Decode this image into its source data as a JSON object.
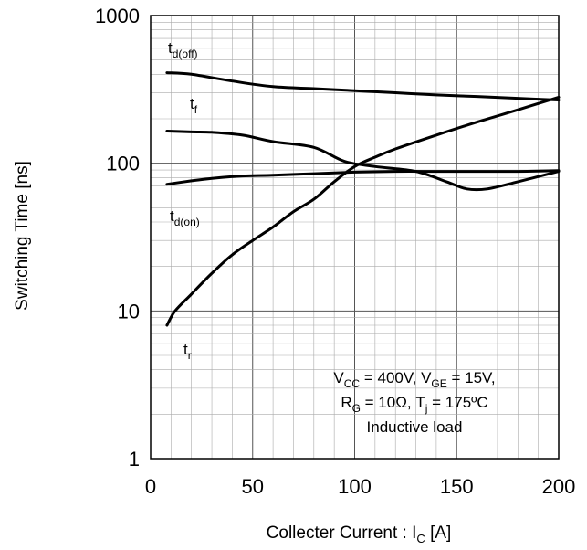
{
  "chart_data": {
    "type": "line",
    "title": "",
    "xlabel": {
      "main": "Collecter Current : I",
      "sub": "C",
      "unit": " [A]"
    },
    "ylabel": "Switching Time [ns]",
    "xlim": [
      0,
      200
    ],
    "ylim": [
      1,
      1000
    ],
    "y_scale": "log",
    "grid": true,
    "x_ticks": [
      0,
      50,
      100,
      150,
      200
    ],
    "x_tick_labels": [
      "0",
      "50",
      "100",
      "150",
      "200"
    ],
    "y_ticks": [
      1,
      10,
      100,
      1000
    ],
    "y_tick_labels": [
      "1",
      "10",
      "100",
      "1000"
    ],
    "series": [
      {
        "label_main": "t",
        "label_sub": "d(off)",
        "color": "#000000",
        "x": [
          8,
          20,
          40,
          60,
          80,
          100,
          120,
          140,
          160,
          180,
          200
        ],
        "y": [
          410,
          400,
          360,
          330,
          320,
          310,
          300,
          290,
          283,
          275,
          268
        ]
      },
      {
        "label_main": "t",
        "label_sub": "f",
        "color": "#000000",
        "x": [
          8,
          20,
          30,
          45,
          60,
          80,
          95,
          110,
          130,
          145,
          155,
          165,
          180,
          200
        ],
        "y": [
          165,
          163,
          162,
          155,
          140,
          128,
          103,
          95,
          88,
          75,
          67,
          67,
          75,
          88
        ]
      },
      {
        "label_main": "t",
        "label_sub": "d(on)",
        "color": "#000000",
        "x": [
          8,
          20,
          30,
          45,
          60,
          80,
          100,
          120,
          140,
          160,
          180,
          200
        ],
        "y": [
          72,
          76,
          79,
          82,
          83,
          85,
          87,
          88,
          88,
          88,
          88,
          89
        ]
      },
      {
        "label_main": "t",
        "label_sub": "r",
        "color": "#000000",
        "x": [
          8,
          12,
          20,
          30,
          40,
          50,
          60,
          70,
          80,
          90,
          100,
          110,
          120,
          140,
          160,
          180,
          200
        ],
        "y": [
          8,
          10,
          13,
          18,
          24,
          30,
          37,
          47,
          57,
          75,
          95,
          110,
          125,
          155,
          190,
          230,
          280
        ]
      }
    ],
    "annotation": {
      "lines": [
        [
          {
            "t": "V"
          },
          {
            "t": "CC",
            "sub": true
          },
          {
            "t": " = 400V, V"
          },
          {
            "t": "GE",
            "sub": true
          },
          {
            "t": " = 15V,"
          }
        ],
        [
          {
            "t": "R"
          },
          {
            "t": "G",
            "sub": true
          },
          {
            "t": " = 10Ω, T"
          },
          {
            "t": "j",
            "sub": true
          },
          {
            "t": " = 175ºC"
          }
        ],
        [
          {
            "t": "Inductive load"
          }
        ]
      ]
    }
  }
}
